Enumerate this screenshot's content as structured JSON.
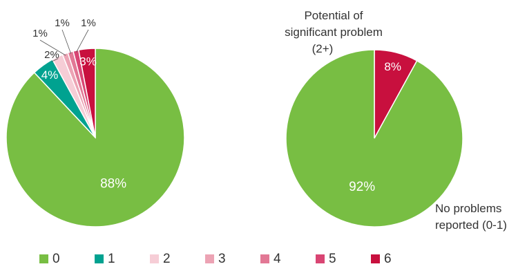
{
  "chart_data": [
    {
      "type": "pie",
      "title": "",
      "slices": [
        {
          "label": "0",
          "value": 88,
          "display": "88%",
          "color": "#78be43"
        },
        {
          "label": "1",
          "value": 4,
          "display": "4%",
          "color": "#00a290"
        },
        {
          "label": "2",
          "value": 2,
          "display": "2%",
          "color": "#f6cdd6"
        },
        {
          "label": "3",
          "value": 1,
          "display": "1%",
          "color": "#eca3b4"
        },
        {
          "label": "4",
          "value": 1,
          "display": "1%",
          "color": "#e27895"
        },
        {
          "label": "5",
          "value": 1,
          "display": "1%",
          "color": "#d94573"
        },
        {
          "label": "6",
          "value": 3,
          "display": "3%",
          "color": "#c8103e"
        }
      ]
    },
    {
      "type": "pie",
      "title": "",
      "slices": [
        {
          "label": "Potential of significant problem (2+)",
          "value": 8,
          "display": "8%",
          "color": "#c8103e"
        },
        {
          "label": "No problems reported (0-1)",
          "value": 92,
          "display": "92%",
          "color": "#78be43"
        }
      ]
    }
  ],
  "annotations": {
    "right_potential": [
      "Potential of",
      "significant problem",
      "(2+)"
    ],
    "right_no_problems": [
      "No problems",
      "reported (0-1)"
    ]
  },
  "legend": {
    "placement": "bottom",
    "items": [
      {
        "label": "0",
        "color": "#78be43"
      },
      {
        "label": "1",
        "color": "#00a290"
      },
      {
        "label": "2",
        "color": "#f6cdd6"
      },
      {
        "label": "3",
        "color": "#eca3b4"
      },
      {
        "label": "4",
        "color": "#e27895"
      },
      {
        "label": "5",
        "color": "#d94573"
      },
      {
        "label": "6",
        "color": "#c8103e"
      }
    ]
  }
}
